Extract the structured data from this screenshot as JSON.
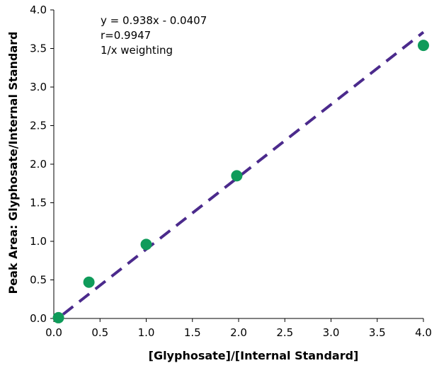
{
  "chart_data": {
    "type": "scatter",
    "title": "",
    "xlabel": "[Glyphosate]/[Internal Standard]",
    "ylabel": "Peak Area: Glyphosate/Internal Standard",
    "xlim": [
      0,
      4.0
    ],
    "ylim": [
      0,
      4.0
    ],
    "x_ticks": [
      "0.0",
      "0.5",
      "1.0",
      "1.5",
      "2.0",
      "2.5",
      "3.0",
      "3.5",
      "4.0"
    ],
    "y_ticks": [
      "0.0",
      "0.5",
      "1.0",
      "1.5",
      "2.0",
      "2.5",
      "3.0",
      "3.5",
      "4.0"
    ],
    "grid": false,
    "series": [
      {
        "x": [
          0.05,
          0.38,
          1.0,
          1.98,
          4.0
        ],
        "y": [
          0.01,
          0.47,
          0.96,
          1.85,
          3.54
        ],
        "color": "#0f9b5a"
      }
    ],
    "trendline": {
      "slope": 0.938,
      "intercept": -0.0407,
      "x_range": [
        0.1,
        4.0
      ],
      "color": "#4b2a8c",
      "style": "dashed"
    },
    "annotations": [
      "y = 0.938x - 0.0407",
      "r=0.9947",
      "1/x weighting"
    ]
  }
}
